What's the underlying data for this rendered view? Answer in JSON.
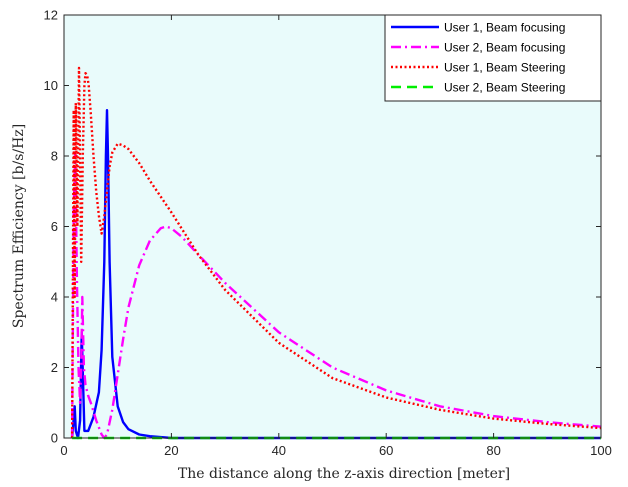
{
  "chart_data": {
    "type": "line",
    "title": "",
    "xlabel": "The distance along the z-axis direction [meter]",
    "ylabel": "Spectrum Efficiency [b/s/Hz]",
    "xlim": [
      0,
      100
    ],
    "ylim": [
      0,
      12
    ],
    "xticks": [
      0,
      20,
      40,
      60,
      80,
      100
    ],
    "yticks": [
      0,
      2,
      4,
      6,
      8,
      10,
      12
    ],
    "grid": false,
    "plot_background": "#e9fbfb",
    "legend_position": "top-right",
    "series": [
      {
        "name": "User 1, Beam focusing",
        "color": "#0000ff",
        "style": "solid",
        "x": [
          1.5,
          2.0,
          2.2,
          2.6,
          3.0,
          3.3,
          3.8,
          4.5,
          5.5,
          6.5,
          7.0,
          7.5,
          7.8,
          8.0,
          8.2,
          8.5,
          9.0,
          10.0,
          11.0,
          12.0,
          14.0,
          16.0,
          20.0,
          30.0,
          40.0,
          60.0,
          80.0,
          100.0
        ],
        "y": [
          0.0,
          0.9,
          0.2,
          0.0,
          0.5,
          3.0,
          0.2,
          0.2,
          0.6,
          1.3,
          2.5,
          5.0,
          8.0,
          9.3,
          8.0,
          5.0,
          2.3,
          0.9,
          0.45,
          0.25,
          0.1,
          0.05,
          0.0,
          0.0,
          0.0,
          0.0,
          0.0,
          0.0
        ]
      },
      {
        "name": "User 2, Beam focusing",
        "color": "#ff00ff",
        "style": "dashdot",
        "x": [
          1.5,
          1.8,
          2.1,
          2.4,
          2.7,
          3.0,
          3.2,
          3.4,
          3.7,
          4.0,
          4.5,
          5.0,
          6.0,
          7.0,
          7.5,
          8.0,
          9.0,
          10.0,
          11.0,
          12.0,
          14.0,
          16.0,
          18.0,
          19.0,
          20.0,
          22.0,
          25.0,
          30.0,
          40.0,
          50.0,
          60.0,
          70.0,
          80.0,
          90.0,
          100.0
        ],
        "y": [
          0.0,
          6.5,
          8.1,
          4.5,
          2.0,
          1.0,
          2.0,
          4.0,
          2.0,
          1.5,
          1.2,
          1.0,
          0.5,
          0.1,
          0.0,
          0.1,
          0.8,
          1.8,
          2.8,
          3.7,
          4.9,
          5.6,
          5.95,
          6.0,
          5.95,
          5.7,
          5.2,
          4.4,
          3.0,
          2.0,
          1.35,
          0.9,
          0.62,
          0.45,
          0.32
        ]
      },
      {
        "name": "User 1, Beam Steering",
        "color": "#ff0000",
        "style": "dotted",
        "x": [
          1.5,
          1.8,
          2.0,
          2.2,
          2.5,
          2.8,
          3.0,
          3.2,
          3.5,
          3.8,
          4.0,
          4.3,
          4.6,
          5.0,
          5.5,
          6.0,
          6.5,
          7.0,
          7.5,
          8.0,
          8.5,
          9.0,
          10.0,
          11.0,
          12.0,
          14.0,
          16.0,
          20.0,
          25.0,
          30.0,
          40.0,
          50.0,
          60.0,
          70.0,
          80.0,
          90.0,
          100.0
        ],
        "y": [
          0.0,
          9.3,
          4.0,
          9.5,
          6.0,
          10.5,
          8.0,
          5.0,
          8.0,
          10.0,
          10.35,
          10.3,
          10.0,
          9.2,
          8.0,
          7.0,
          6.3,
          5.8,
          6.3,
          7.0,
          7.7,
          8.1,
          8.35,
          8.3,
          8.2,
          7.8,
          7.3,
          6.4,
          5.2,
          4.2,
          2.7,
          1.7,
          1.15,
          0.8,
          0.55,
          0.4,
          0.28
        ]
      },
      {
        "name": "User 2, Beam Steering",
        "color": "#00ee00",
        "style": "dashed",
        "x": [
          1.5,
          100.0
        ],
        "y": [
          0.0,
          0.0
        ]
      }
    ]
  }
}
